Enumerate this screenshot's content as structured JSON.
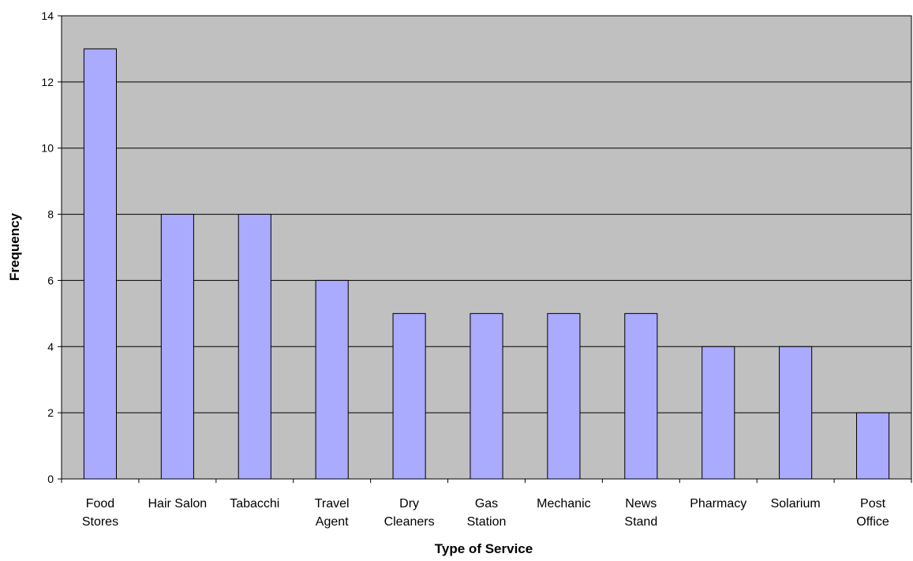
{
  "chart_data": {
    "type": "bar",
    "title": "",
    "xlabel": "Type of Service",
    "ylabel": "Frequency",
    "ylim": [
      0,
      14
    ],
    "yticks": [
      0,
      2,
      4,
      6,
      8,
      10,
      12,
      14
    ],
    "grid": true,
    "legend": "none",
    "categories": [
      [
        "Food",
        "Stores"
      ],
      [
        "Hair Salon"
      ],
      [
        "Tabacchi"
      ],
      [
        "Travel",
        "Agent"
      ],
      [
        "Dry",
        "Cleaners"
      ],
      [
        "Gas",
        "Station"
      ],
      [
        "Mechanic"
      ],
      [
        "News",
        "Stand"
      ],
      [
        "Pharmacy"
      ],
      [
        "Solarium"
      ],
      [
        "Post",
        "Office"
      ]
    ],
    "values": [
      13,
      8,
      8,
      6,
      5,
      5,
      5,
      5,
      4,
      4,
      2
    ],
    "colors": {
      "plot_background": "#c0c0c0",
      "bar_fill": "#aaaaff",
      "bar_stroke": "#000000",
      "gridline": "#000000"
    }
  }
}
